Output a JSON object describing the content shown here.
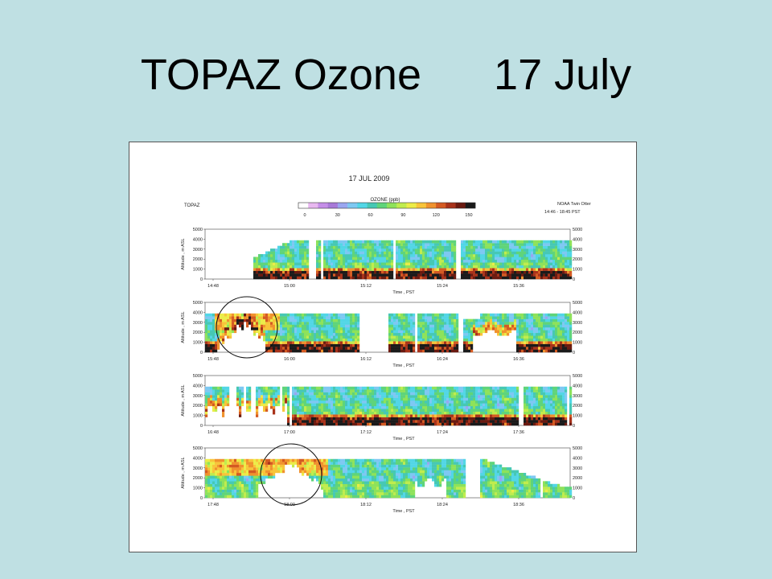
{
  "slide": {
    "title": "TOPAZ Ozone",
    "date": "17 July"
  },
  "chart_data": {
    "type": "heatmap",
    "title": "17 JUL 2009",
    "instrument_label": "TOPAZ",
    "platform_label": "NOAA Twin Otter",
    "time_range_label": "14:46 - 18:45 PST",
    "colorbar": {
      "label": "OZONE (ppb)",
      "ticks": [
        "0",
        "30",
        "60",
        "90",
        "120",
        "150"
      ],
      "colors": [
        "#ffffff",
        "#e8b8f0",
        "#c58ee8",
        "#a87ad8",
        "#9aa6f0",
        "#7ec8f2",
        "#52d6e6",
        "#46c8b4",
        "#5fd47a",
        "#8ee25a",
        "#c0ec4e",
        "#ecec48",
        "#f8c43a",
        "#f0922e",
        "#d45a22",
        "#a8321a",
        "#6a1a10",
        "#1a1a1a"
      ]
    },
    "y_axis": {
      "label": "Altitude , m ASL",
      "ticks": [
        "0",
        "1000",
        "2000",
        "3000",
        "4000",
        "5000"
      ],
      "range": [
        0,
        5000
      ]
    },
    "x_axis": {
      "label": "Time , PST"
    },
    "panels": [
      {
        "x_ticks": [
          "14:48",
          "15:00",
          "15:12",
          "15:24",
          "15:36"
        ]
      },
      {
        "x_ticks": [
          "15:48",
          "16:00",
          "16:12",
          "16:24",
          "16:36"
        ]
      },
      {
        "x_ticks": [
          "16:48",
          "17:00",
          "17:12",
          "17:24",
          "17:36"
        ]
      },
      {
        "x_ticks": [
          "17:48",
          "18:00",
          "18:12",
          "18:24",
          "18:36"
        ]
      }
    ]
  }
}
